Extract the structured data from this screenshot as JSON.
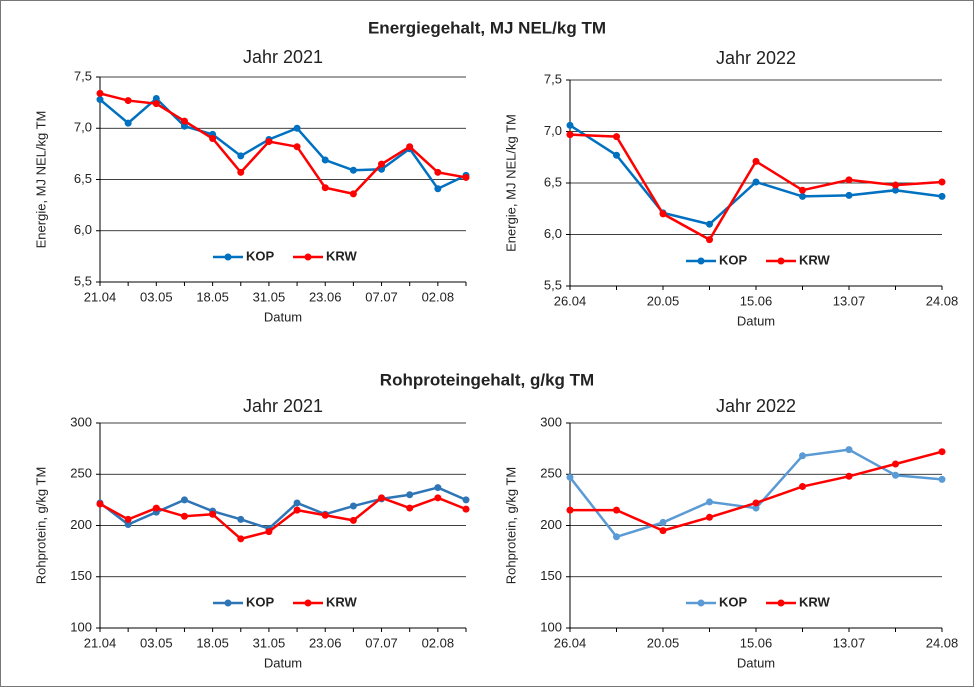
{
  "headings": [
    "Energiegehalt, MJ NEL/kg TM",
    "Rohproteingehalt, g/kg TM"
  ],
  "chart_data": [
    {
      "type": "line",
      "title": "Jahr 2021",
      "xlabel": "Datum",
      "ylabel": "Energie, MJ NEL/kg TM",
      "categories": [
        "21.04",
        null,
        "03.05",
        null,
        "18.05",
        null,
        "31.05",
        null,
        "23.06",
        null,
        "07.07",
        null,
        "02.08",
        null
      ],
      "series": [
        {
          "name": "KOP",
          "color": "#0070c0",
          "values": [
            7.28,
            7.05,
            7.29,
            7.02,
            6.94,
            6.73,
            6.89,
            7.0,
            6.69,
            6.59,
            6.6,
            6.8,
            6.41,
            6.54
          ]
        },
        {
          "name": "KRW",
          "color": "#ff0000",
          "values": [
            7.34,
            7.27,
            7.24,
            7.07,
            6.9,
            6.57,
            6.87,
            6.82,
            6.42,
            6.36,
            6.65,
            6.82,
            6.57,
            6.52
          ]
        }
      ],
      "ylim": [
        5.5,
        7.5
      ],
      "yticks": [
        {
          "value": 5.5,
          "label": "5,5"
        },
        {
          "value": 6,
          "label": "6,0"
        },
        {
          "value": 6.5,
          "label": "6,5"
        },
        {
          "value": 7,
          "label": "7,0"
        },
        {
          "value": 7.5,
          "label": "7,5"
        }
      ],
      "grid": true,
      "legend": "lower center"
    },
    {
      "type": "line",
      "title": "Jahr 2022",
      "xlabel": "Datum",
      "ylabel": "Energie, MJ NEL/kg TM",
      "categories": [
        "26.04",
        null,
        "20.05",
        null,
        "15.06",
        null,
        "13.07",
        null,
        "24.08"
      ],
      "series": [
        {
          "name": "KOP",
          "color": "#0070c0",
          "values": [
            7.06,
            6.77,
            6.21,
            6.1,
            6.51,
            6.37,
            6.38,
            6.43,
            6.37
          ]
        },
        {
          "name": "KRW",
          "color": "#ff0000",
          "values": [
            6.97,
            6.95,
            6.2,
            5.95,
            6.71,
            6.43,
            6.53,
            6.48,
            6.51
          ]
        }
      ],
      "ylim": [
        5.5,
        7.5
      ],
      "yticks": [
        {
          "value": 5.5,
          "label": "5,5"
        },
        {
          "value": 6,
          "label": "6,0"
        },
        {
          "value": 6.5,
          "label": "6,5"
        },
        {
          "value": 7,
          "label": "7,0"
        },
        {
          "value": 7.5,
          "label": "7,5"
        }
      ],
      "grid": true,
      "legend": "lower center"
    },
    {
      "type": "line",
      "title": "Jahr 2021",
      "xlabel": "Datum",
      "ylabel": "Rohprotein, g/kg TM",
      "categories": [
        "21.04",
        null,
        "03.05",
        null,
        "18.05",
        null,
        "31.05",
        null,
        "23.06",
        null,
        "07.07",
        null,
        "02.08",
        null
      ],
      "series": [
        {
          "name": "KOP",
          "color": "#2e75b6",
          "values": [
            222,
            201,
            213,
            225,
            214,
            206,
            197,
            222,
            211,
            219,
            226,
            230,
            237,
            225
          ]
        },
        {
          "name": "KRW",
          "color": "#ff0000",
          "values": [
            221,
            206,
            217,
            209,
            211,
            187,
            194,
            215,
            210,
            205,
            227,
            217,
            227,
            216
          ]
        }
      ],
      "ylim": [
        100,
        300
      ],
      "yticks": [
        100,
        150,
        200,
        250,
        300
      ],
      "grid": true,
      "legend": "lower center"
    },
    {
      "type": "line",
      "title": "Jahr 2022",
      "xlabel": "Datum",
      "ylabel": "Rohprotein, g/kg TM",
      "categories": [
        "26.04",
        null,
        "20.05",
        null,
        "15.06",
        null,
        "13.07",
        null,
        "24.08"
      ],
      "series": [
        {
          "name": "KOP",
          "color": "#5b9bd5",
          "values": [
            247,
            189,
            203,
            223,
            217,
            268,
            274,
            249,
            245
          ]
        },
        {
          "name": "KRW",
          "color": "#ff0000",
          "values": [
            215,
            215,
            195,
            208,
            222,
            238,
            248,
            260,
            272
          ]
        }
      ],
      "ylim": [
        100,
        300
      ],
      "yticks": [
        100,
        150,
        200,
        250,
        300
      ],
      "grid": true,
      "legend": "lower center"
    }
  ]
}
